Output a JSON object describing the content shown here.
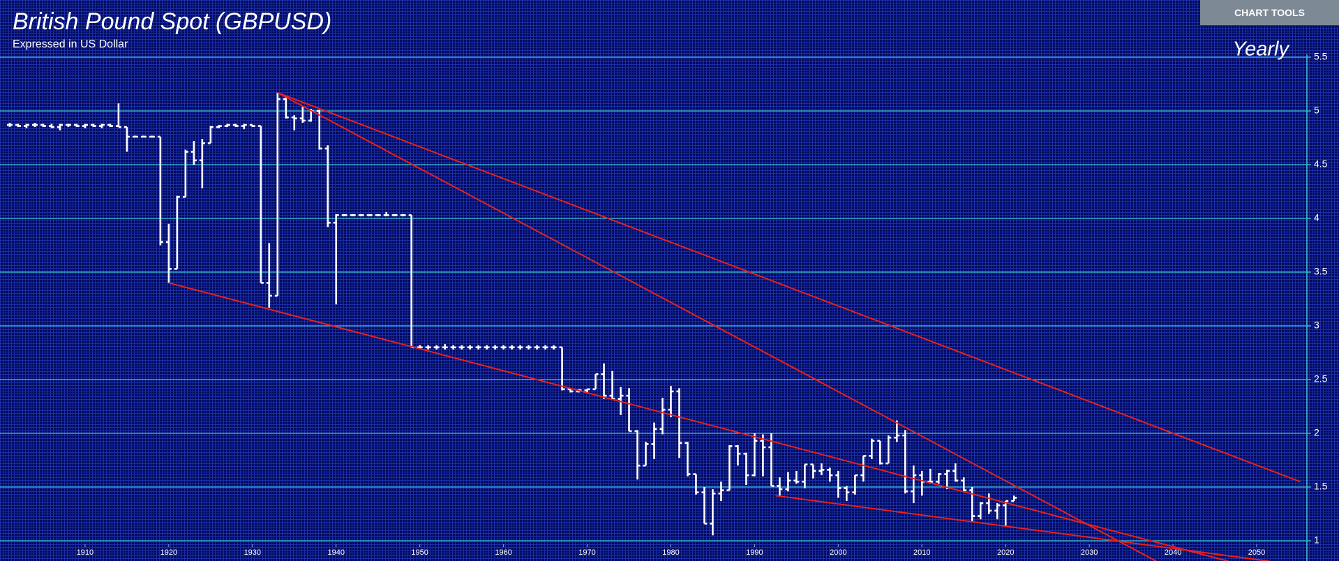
{
  "chart_data": {
    "type": "ohlc",
    "title": "British Pound Spot (GBPUSD)",
    "subtitle": "Expressed in US Dollar",
    "period": "Yearly",
    "button": "CHART TOOLS",
    "color": "#ffffff",
    "grid": true,
    "grid_color": "#3fc6d8",
    "trend_color": "#e8201e",
    "xlim": [
      1900,
      2056
    ],
    "ylim": [
      1,
      5.5
    ],
    "xticks": [
      1910,
      1920,
      1930,
      1940,
      1950,
      1960,
      1970,
      1980,
      1990,
      2000,
      2010,
      2020,
      2030,
      2040,
      2050
    ],
    "yticks": [
      1,
      1.5,
      2,
      2.5,
      3,
      3.5,
      4,
      4.5,
      5,
      5.5
    ],
    "x": [
      1901,
      1902,
      1903,
      1904,
      1905,
      1906,
      1907,
      1908,
      1909,
      1910,
      1911,
      1912,
      1913,
      1914,
      1915,
      1916,
      1917,
      1918,
      1919,
      1920,
      1921,
      1922,
      1923,
      1924,
      1925,
      1926,
      1927,
      1928,
      1929,
      1930,
      1931,
      1932,
      1933,
      1934,
      1935,
      1936,
      1937,
      1938,
      1939,
      1940,
      1941,
      1942,
      1943,
      1944,
      1945,
      1946,
      1947,
      1948,
      1949,
      1950,
      1951,
      1952,
      1953,
      1954,
      1955,
      1956,
      1957,
      1958,
      1959,
      1960,
      1961,
      1962,
      1963,
      1964,
      1965,
      1966,
      1967,
      1968,
      1969,
      1970,
      1971,
      1972,
      1973,
      1974,
      1975,
      1976,
      1977,
      1978,
      1979,
      1980,
      1981,
      1982,
      1983,
      1984,
      1985,
      1986,
      1987,
      1988,
      1989,
      1990,
      1991,
      1992,
      1993,
      1994,
      1995,
      1996,
      1997,
      1998,
      1999,
      2000,
      2001,
      2002,
      2003,
      2004,
      2005,
      2006,
      2007,
      2008,
      2009,
      2010,
      2011,
      2012,
      2013,
      2014,
      2015,
      2016,
      2017,
      2018,
      2019,
      2020,
      2021
    ],
    "open": [
      4.87,
      4.87,
      4.86,
      4.87,
      4.87,
      4.86,
      4.85,
      4.87,
      4.87,
      4.86,
      4.87,
      4.86,
      4.87,
      4.86,
      4.85,
      4.76,
      4.76,
      4.76,
      4.76,
      3.78,
      3.53,
      4.2,
      4.62,
      4.54,
      4.7,
      4.85,
      4.86,
      4.87,
      4.86,
      4.87,
      4.86,
      3.4,
      3.28,
      5.11,
      4.94,
      4.93,
      4.91,
      5.0,
      4.65,
      3.96,
      4.03,
      4.03,
      4.03,
      4.03,
      4.03,
      4.03,
      4.03,
      4.03,
      4.03,
      2.8,
      2.8,
      2.8,
      2.8,
      2.8,
      2.8,
      2.8,
      2.8,
      2.8,
      2.8,
      2.8,
      2.8,
      2.8,
      2.8,
      2.8,
      2.8,
      2.8,
      2.8,
      2.41,
      2.39,
      2.4,
      2.41,
      2.55,
      2.35,
      2.32,
      2.35,
      2.02,
      1.7,
      1.9,
      2.04,
      2.22,
      2.39,
      1.91,
      1.62,
      1.45,
      1.16,
      1.44,
      1.47,
      1.88,
      1.81,
      1.61,
      1.93,
      1.87,
      1.51,
      1.48,
      1.56,
      1.55,
      1.71,
      1.65,
      1.66,
      1.61,
      1.49,
      1.45,
      1.61,
      1.79,
      1.93,
      1.72,
      1.96,
      1.98,
      1.46,
      1.61,
      1.55,
      1.55,
      1.62,
      1.65,
      1.56,
      1.47,
      1.23,
      1.35,
      1.28,
      1.33,
      1.37
    ],
    "high": [
      4.89,
      4.88,
      4.88,
      4.89,
      4.88,
      4.88,
      4.88,
      4.88,
      4.88,
      4.88,
      4.88,
      4.88,
      4.88,
      5.07,
      4.85,
      4.77,
      4.77,
      4.77,
      4.76,
      3.95,
      4.21,
      4.64,
      4.72,
      4.74,
      4.86,
      4.87,
      4.88,
      4.88,
      4.88,
      4.87,
      4.86,
      3.77,
      5.17,
      5.14,
      4.96,
      5.04,
      5.02,
      5.01,
      4.68,
      4.04,
      4.04,
      4.04,
      4.04,
      4.04,
      4.04,
      4.06,
      4.04,
      4.04,
      4.03,
      2.82,
      2.82,
      2.82,
      2.83,
      2.82,
      2.82,
      2.82,
      2.82,
      2.82,
      2.82,
      2.82,
      2.82,
      2.82,
      2.82,
      2.82,
      2.82,
      2.82,
      2.8,
      2.41,
      2.41,
      2.41,
      2.55,
      2.65,
      2.58,
      2.43,
      2.42,
      2.03,
      1.92,
      2.1,
      2.33,
      2.44,
      2.42,
      1.92,
      1.62,
      1.5,
      1.48,
      1.55,
      1.89,
      1.89,
      1.82,
      2.0,
      1.99,
      2.0,
      1.59,
      1.64,
      1.65,
      1.71,
      1.71,
      1.72,
      1.68,
      1.65,
      1.51,
      1.61,
      1.79,
      1.95,
      1.93,
      1.98,
      2.12,
      2.03,
      1.7,
      1.65,
      1.67,
      1.63,
      1.66,
      1.72,
      1.59,
      1.5,
      1.36,
      1.44,
      1.35,
      1.37,
      1.42
    ],
    "low": [
      4.85,
      4.85,
      4.84,
      4.85,
      4.85,
      4.84,
      4.82,
      4.85,
      4.85,
      4.84,
      4.85,
      4.84,
      4.85,
      4.85,
      4.62,
      4.76,
      4.76,
      4.76,
      3.75,
      3.4,
      3.53,
      4.2,
      4.5,
      4.28,
      4.7,
      4.84,
      4.85,
      4.85,
      4.83,
      4.85,
      3.4,
      3.17,
      3.28,
      4.93,
      4.82,
      4.89,
      4.9,
      4.64,
      3.92,
      3.2,
      4.02,
      4.02,
      4.02,
      4.02,
      4.02,
      4.02,
      4.02,
      4.02,
      2.8,
      2.78,
      2.78,
      2.78,
      2.78,
      2.78,
      2.78,
      2.78,
      2.78,
      2.78,
      2.78,
      2.78,
      2.78,
      2.78,
      2.78,
      2.78,
      2.78,
      2.78,
      2.4,
      2.38,
      2.38,
      2.38,
      2.41,
      2.32,
      2.32,
      2.17,
      2.02,
      1.57,
      1.7,
      1.76,
      1.99,
      2.15,
      1.77,
      1.6,
      1.43,
      1.16,
      1.05,
      1.37,
      1.47,
      1.7,
      1.52,
      1.6,
      1.6,
      1.51,
      1.42,
      1.46,
      1.53,
      1.49,
      1.58,
      1.61,
      1.55,
      1.4,
      1.37,
      1.43,
      1.55,
      1.76,
      1.71,
      1.72,
      1.92,
      1.44,
      1.35,
      1.42,
      1.53,
      1.53,
      1.48,
      1.55,
      1.46,
      1.18,
      1.2,
      1.25,
      1.2,
      1.14,
      1.37
    ],
    "close": [
      4.87,
      4.86,
      4.87,
      4.87,
      4.86,
      4.85,
      4.87,
      4.87,
      4.86,
      4.87,
      4.86,
      4.87,
      4.86,
      4.85,
      4.76,
      4.76,
      4.76,
      4.76,
      3.78,
      3.53,
      4.2,
      4.62,
      4.54,
      4.7,
      4.85,
      4.86,
      4.87,
      4.86,
      4.87,
      4.86,
      3.4,
      3.28,
      5.11,
      4.94,
      4.93,
      4.91,
      5.0,
      4.65,
      3.96,
      4.03,
      4.03,
      4.03,
      4.03,
      4.03,
      4.03,
      4.03,
      4.03,
      4.03,
      2.8,
      2.8,
      2.8,
      2.8,
      2.8,
      2.8,
      2.8,
      2.8,
      2.8,
      2.8,
      2.8,
      2.8,
      2.8,
      2.8,
      2.8,
      2.8,
      2.8,
      2.8,
      2.41,
      2.39,
      2.4,
      2.41,
      2.55,
      2.35,
      2.32,
      2.35,
      2.02,
      1.7,
      1.9,
      2.04,
      2.22,
      2.39,
      1.91,
      1.62,
      1.45,
      1.16,
      1.44,
      1.47,
      1.88,
      1.81,
      1.61,
      1.93,
      1.87,
      1.51,
      1.48,
      1.56,
      1.55,
      1.71,
      1.65,
      1.66,
      1.61,
      1.49,
      1.45,
      1.61,
      1.79,
      1.93,
      1.72,
      1.96,
      1.98,
      1.46,
      1.61,
      1.55,
      1.55,
      1.62,
      1.65,
      1.56,
      1.47,
      1.23,
      1.35,
      1.28,
      1.33,
      1.37,
      1.4
    ],
    "trend_lines": [
      {
        "x": [
          1933,
          2055.2
        ],
        "y": [
          5.17,
          1.55
        ]
      },
      {
        "x": [
          1933,
          2038
        ],
        "y": [
          5.17,
          0.81
        ]
      },
      {
        "x": [
          1920,
          2046.6
        ],
        "y": [
          3.4,
          0.81
        ]
      },
      {
        "x": [
          1992.5,
          2051.5
        ],
        "y": [
          1.42,
          0.81
        ]
      }
    ]
  }
}
